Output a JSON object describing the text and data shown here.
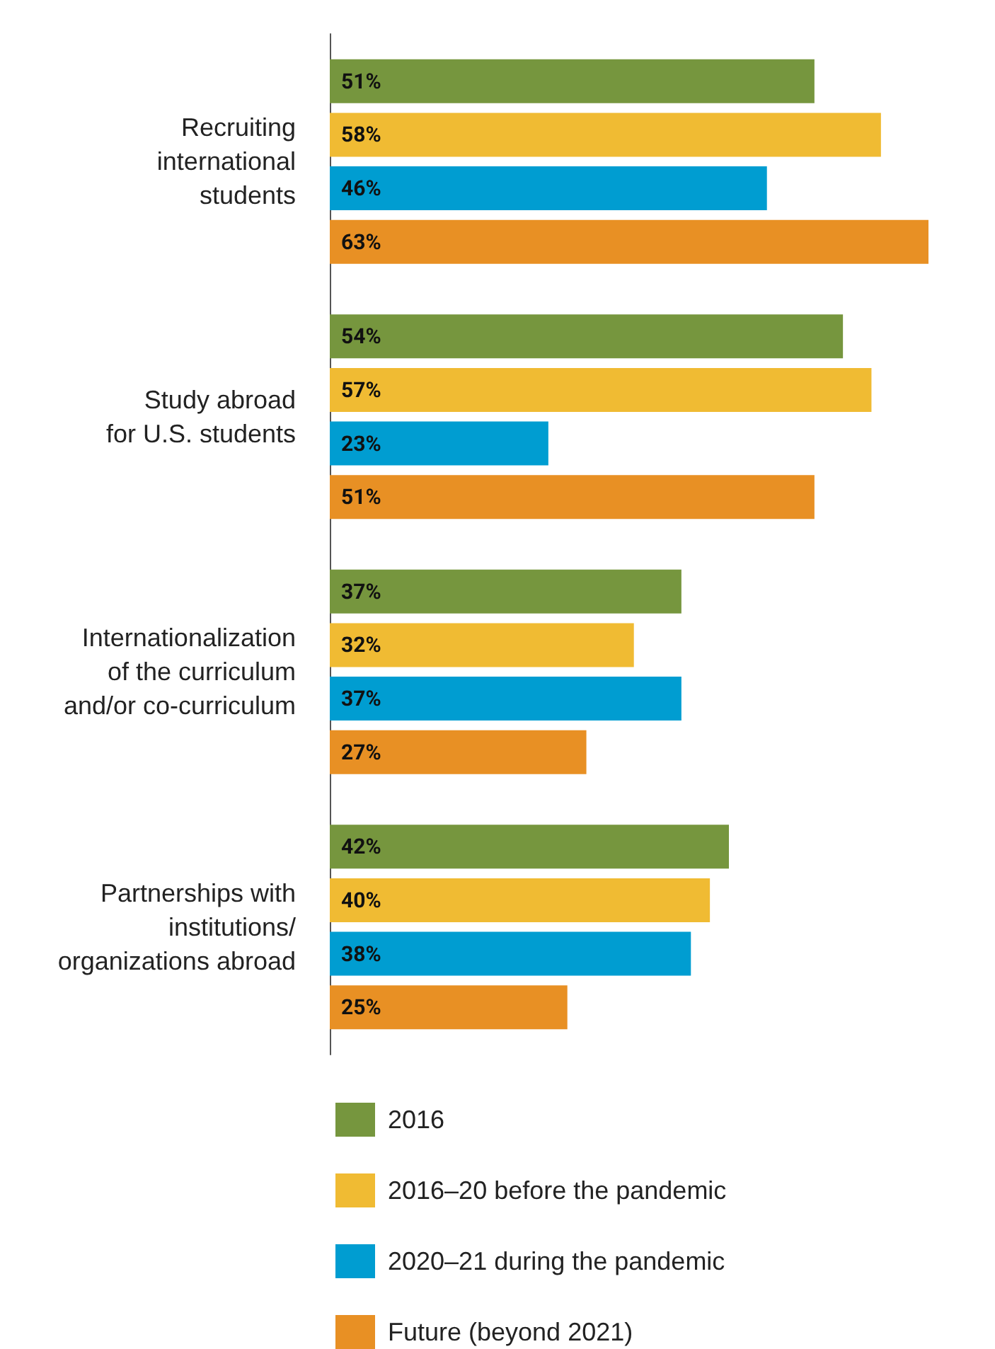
{
  "chart_data": {
    "type": "bar",
    "orientation": "horizontal",
    "categories": [
      "Recruiting\ninternational\nstudents",
      "Study abroad\nfor U.S. students",
      "Internationalization\nof the curriculum\nand/or co-curriculum",
      "Partnerships with\ninstitutions/\norganizations abroad"
    ],
    "series": [
      {
        "name": "2016",
        "color": "#76963e",
        "values": [
          51,
          54,
          37,
          42
        ],
        "value_labels": [
          "51%",
          "54%",
          "37%",
          "42%"
        ]
      },
      {
        "name": "2016–20 before the pandemic",
        "color": "#f0bb33",
        "values": [
          58,
          57,
          32,
          40
        ],
        "value_labels": [
          "58%",
          "57%",
          "32%",
          "40%"
        ]
      },
      {
        "name": "2020–21 during the pandemic",
        "color": "#009dd1",
        "values": [
          46,
          23,
          37,
          38
        ],
        "value_labels": [
          "46%",
          "23%",
          "37%",
          "38%"
        ]
      },
      {
        "name": "Future (beyond 2021)",
        "color": "#e89024",
        "values": [
          63,
          51,
          27,
          25
        ],
        "value_labels": [
          "63%",
          "51%",
          "27%",
          "25%"
        ]
      }
    ],
    "legend": "bottom",
    "tick_labels": "y",
    "grid": false
  }
}
